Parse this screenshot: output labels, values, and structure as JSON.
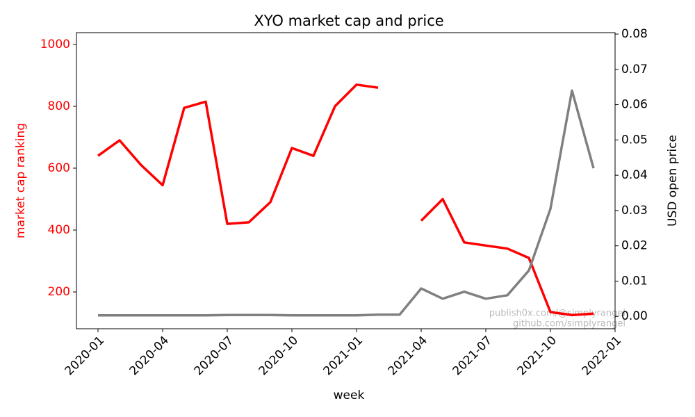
{
  "chart_data": {
    "type": "line",
    "title": "XYO market cap and price",
    "xlabel": "week",
    "ylabel": "market cap ranking",
    "y2label": "USD open price",
    "ylabel_color": "red",
    "x": [
      "2020-01",
      "2020-02",
      "2020-03",
      "2020-04",
      "2020-05",
      "2020-06",
      "2020-07",
      "2020-08",
      "2020-09",
      "2020-10",
      "2020-11",
      "2020-12",
      "2021-01",
      "2021-02",
      "2021-03",
      "2021-04",
      "2021-05",
      "2021-06",
      "2021-07",
      "2021-08",
      "2021-09",
      "2021-10",
      "2021-11",
      "2021-12"
    ],
    "series": [
      {
        "color": "red",
        "axis": "y",
        "values": [
          640,
          690,
          610,
          545,
          795,
          815,
          420,
          425,
          490,
          665,
          640,
          800,
          870,
          860,
          null,
          430,
          500,
          360,
          350,
          340,
          310,
          135,
          125,
          130
        ]
      },
      {
        "color": "gray",
        "axis": "y2",
        "values": [
          0.0003,
          0.0003,
          0.0003,
          0.0003,
          0.0003,
          0.0003,
          0.0004,
          0.0004,
          0.0004,
          0.0003,
          0.0003,
          0.0003,
          0.0003,
          0.0005,
          0.0005,
          0.0079,
          0.005,
          0.007,
          0.005,
          0.006,
          0.013,
          0.0305,
          0.064,
          0.042
        ]
      }
    ],
    "xlim": [
      "2019-12",
      "2022-01"
    ],
    "xticks": [
      "2020-01",
      "2020-04",
      "2020-07",
      "2020-10",
      "2021-01",
      "2021-04",
      "2021-07",
      "2021-10",
      "2022-01"
    ],
    "ylim": [
      81,
      1038
    ],
    "yticks": [
      200,
      400,
      600,
      800,
      1000
    ],
    "y2lim": [
      -0.0035,
      0.0804
    ],
    "y2ticks": [
      {
        "value": 0,
        "label": "0.00"
      },
      {
        "value": 0.01,
        "label": "0.01"
      },
      {
        "value": 0.02,
        "label": "0.02"
      },
      {
        "value": 0.03,
        "label": "0.03"
      },
      {
        "value": 0.04,
        "label": "0.04"
      },
      {
        "value": 0.05,
        "label": "0.05"
      },
      {
        "value": 0.06,
        "label": "0.06"
      },
      {
        "value": 0.07,
        "label": "0.07"
      },
      {
        "value": 0.08,
        "label": "0.08"
      }
    ],
    "annotations": [
      "publish0x.com/@simplyrangel",
      "github.com/simplyrangel"
    ]
  }
}
